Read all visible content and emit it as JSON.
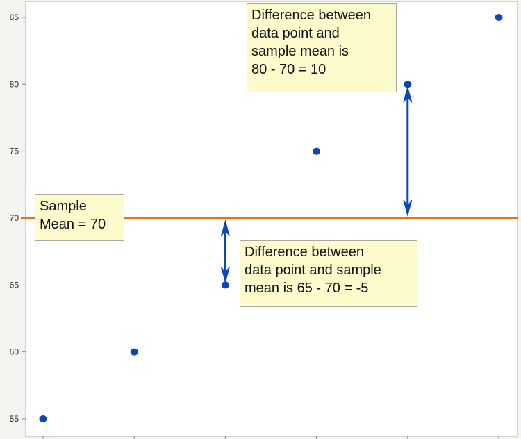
{
  "chart_data": {
    "type": "scatter",
    "title": "",
    "xlabel": "",
    "ylabel": "",
    "x": [
      1,
      2,
      3,
      4,
      5,
      6
    ],
    "y": [
      55,
      60,
      65,
      75,
      80,
      85
    ],
    "ylim": [
      54,
      86
    ],
    "xlim": [
      0.8,
      6.2
    ],
    "yticks": [
      "55",
      "60",
      "65",
      "70",
      "75",
      "80",
      "85"
    ],
    "grid": false,
    "mean_line": {
      "value": 70
    },
    "annotations": {
      "mean": "Sample\nMean = 70",
      "top": "Difference between\ndata point and\nsample mean is\n80 - 70 = 10",
      "bottom": "Difference between\ndata point and sample\nmean is 65 - 70 = -5"
    },
    "arrows": [
      {
        "x": 3,
        "from": 65,
        "to": 70
      },
      {
        "x": 5,
        "from": 70,
        "to": 80
      }
    ],
    "colors": {
      "points": "#0a47b5",
      "mean_line": "#e8720c",
      "arrows": "#0a47b5",
      "note_bg": "#fdfbcc"
    }
  }
}
